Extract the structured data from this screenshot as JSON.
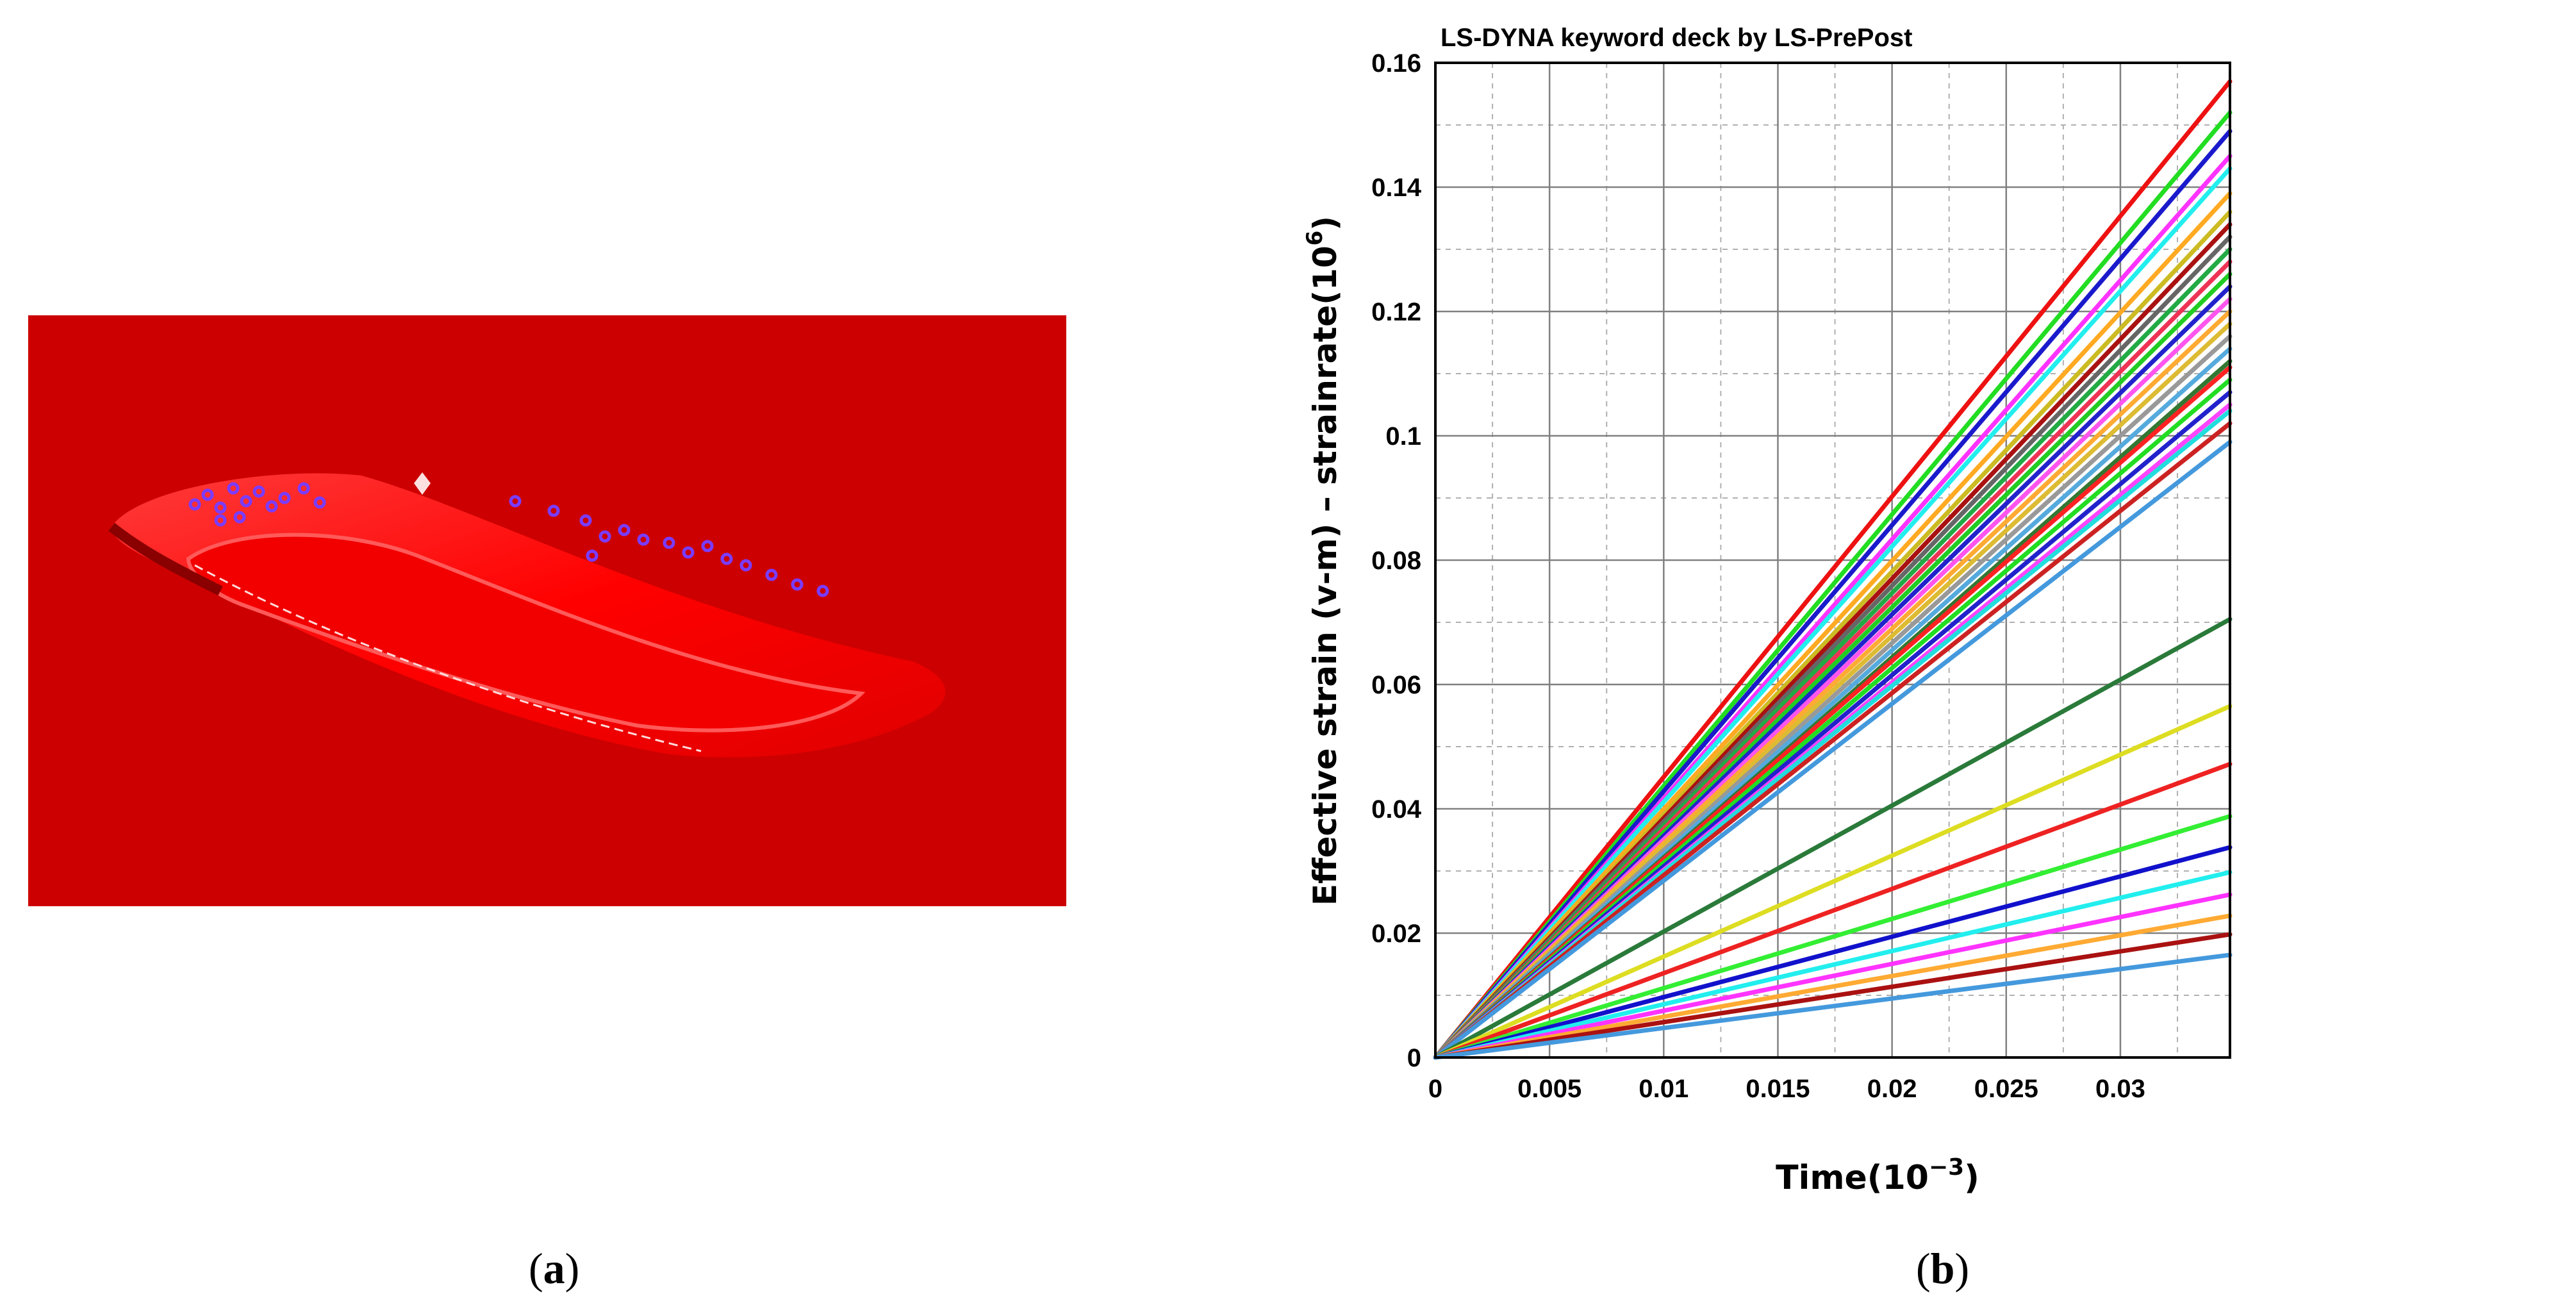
{
  "panel_a": {
    "caption_letter": "a",
    "colors": {
      "background": "#cc0000",
      "part": "#ff0000",
      "highlight": "#ff6666",
      "markers": "#7a3cff"
    }
  },
  "panel_b": {
    "caption_letter": "b"
  },
  "chart_data": {
    "type": "line",
    "title": "LS-DYNA keyword deck by LS-PrePost",
    "xlabel": "Time(10^-3)",
    "ylabel": "Effective strain (v-m) – strainrate(10^6)",
    "xlim": [
      0,
      0.0348
    ],
    "ylim": [
      0,
      0.16
    ],
    "x_ticks": [
      "0",
      "0.005",
      "0.01",
      "0.015",
      "0.02",
      "0.025",
      "0.03"
    ],
    "y_ticks": [
      "0",
      "0.02",
      "0.04",
      "0.06",
      "0.08",
      "0.1",
      "0.12",
      "0.14",
      "0.16"
    ],
    "grid": true,
    "legend": "none",
    "series": [
      {
        "x": [
          0,
          0.0348
        ],
        "y": [
          0,
          0.157
        ],
        "color": "#ee1111"
      },
      {
        "x": [
          0,
          0.0348
        ],
        "y": [
          0,
          0.152
        ],
        "color": "#22dd22"
      },
      {
        "x": [
          0,
          0.0348
        ],
        "y": [
          0,
          0.149
        ],
        "color": "#1a1acc"
      },
      {
        "x": [
          0,
          0.0348
        ],
        "y": [
          0,
          0.145
        ],
        "color": "#ff33ff"
      },
      {
        "x": [
          0,
          0.0348
        ],
        "y": [
          0,
          0.143
        ],
        "color": "#22eeee"
      },
      {
        "x": [
          0,
          0.0348
        ],
        "y": [
          0,
          0.139
        ],
        "color": "#ffaa22"
      },
      {
        "x": [
          0,
          0.0348
        ],
        "y": [
          0,
          0.136
        ],
        "color": "#ccbb22"
      },
      {
        "x": [
          0,
          0.0348
        ],
        "y": [
          0,
          0.134
        ],
        "color": "#aa1111"
      },
      {
        "x": [
          0,
          0.0348
        ],
        "y": [
          0,
          0.132
        ],
        "color": "#666666"
      },
      {
        "x": [
          0,
          0.0348
        ],
        "y": [
          0,
          0.13
        ],
        "color": "#22aa44"
      },
      {
        "x": [
          0,
          0.0348
        ],
        "y": [
          0,
          0.128
        ],
        "color": "#ee3355"
      },
      {
        "x": [
          0,
          0.0348
        ],
        "y": [
          0,
          0.126
        ],
        "color": "#22cc22"
      },
      {
        "x": [
          0,
          0.0348
        ],
        "y": [
          0,
          0.124
        ],
        "color": "#2222cc"
      },
      {
        "x": [
          0,
          0.0348
        ],
        "y": [
          0,
          0.122
        ],
        "color": "#ff55ee"
      },
      {
        "x": [
          0,
          0.0348
        ],
        "y": [
          0,
          0.12
        ],
        "color": "#ffaa33"
      },
      {
        "x": [
          0,
          0.0348
        ],
        "y": [
          0,
          0.118
        ],
        "color": "#ddbb33"
      },
      {
        "x": [
          0,
          0.0348
        ],
        "y": [
          0,
          0.116
        ],
        "color": "#999999"
      },
      {
        "x": [
          0,
          0.0348
        ],
        "y": [
          0,
          0.114
        ],
        "color": "#55aadd"
      },
      {
        "x": [
          0,
          0.0348
        ],
        "y": [
          0,
          0.112
        ],
        "color": "#337733"
      },
      {
        "x": [
          0,
          0.0348
        ],
        "y": [
          0,
          0.111
        ],
        "color": "#ff2222"
      },
      {
        "x": [
          0,
          0.0348
        ],
        "y": [
          0,
          0.109
        ],
        "color": "#22dd22"
      },
      {
        "x": [
          0,
          0.0348
        ],
        "y": [
          0,
          0.107
        ],
        "color": "#2222cc"
      },
      {
        "x": [
          0,
          0.0348
        ],
        "y": [
          0,
          0.105
        ],
        "color": "#ff44ff"
      },
      {
        "x": [
          0,
          0.0348
        ],
        "y": [
          0,
          0.104
        ],
        "color": "#22dddd"
      },
      {
        "x": [
          0,
          0.0348
        ],
        "y": [
          0,
          0.102
        ],
        "color": "#cc2222"
      },
      {
        "x": [
          0,
          0.0348
        ],
        "y": [
          0,
          0.099
        ],
        "color": "#4499dd"
      },
      {
        "x": [
          0,
          0.0348
        ],
        "y": [
          0,
          0.0705
        ],
        "color": "#2a7a3a"
      },
      {
        "x": [
          0,
          0.0348
        ],
        "y": [
          0,
          0.0565
        ],
        "color": "#dddd22"
      },
      {
        "x": [
          0,
          0.0348
        ],
        "y": [
          0,
          0.0472
        ],
        "color": "#ee2222"
      },
      {
        "x": [
          0,
          0.0348
        ],
        "y": [
          0,
          0.0388
        ],
        "color": "#33ee33"
      },
      {
        "x": [
          0,
          0.0348
        ],
        "y": [
          0,
          0.0338
        ],
        "color": "#1111cc"
      },
      {
        "x": [
          0,
          0.0348
        ],
        "y": [
          0,
          0.0298
        ],
        "color": "#22eeee"
      },
      {
        "x": [
          0,
          0.0348
        ],
        "y": [
          0,
          0.0262
        ],
        "color": "#ff33ff"
      },
      {
        "x": [
          0,
          0.0348
        ],
        "y": [
          0,
          0.0228
        ],
        "color": "#ffaa33"
      },
      {
        "x": [
          0,
          0.0348
        ],
        "y": [
          0,
          0.0198
        ],
        "color": "#aa1111"
      },
      {
        "x": [
          0,
          0.0348
        ],
        "y": [
          0,
          0.0165
        ],
        "color": "#4499dd"
      }
    ]
  }
}
